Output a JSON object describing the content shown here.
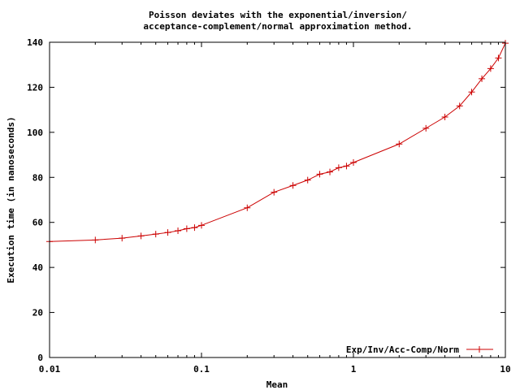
{
  "chart_data": {
    "type": "line",
    "title_lines": [
      "Poisson deviates with the exponential/inversion/",
      "acceptance-complement/normal approximation method."
    ],
    "xlabel": "Mean",
    "ylabel": "Execution time (in nanoseconds)",
    "x_scale": "log",
    "xlim": [
      0.01,
      10
    ],
    "ylim": [
      0,
      140
    ],
    "x_ticks": [
      {
        "value": 0.01,
        "label": "0.01"
      },
      {
        "value": 0.1,
        "label": "0.1"
      },
      {
        "value": 1,
        "label": "1"
      },
      {
        "value": 10,
        "label": "10"
      }
    ],
    "y_ticks": [
      {
        "value": 0,
        "label": "0"
      },
      {
        "value": 20,
        "label": "20"
      },
      {
        "value": 40,
        "label": "40"
      },
      {
        "value": 60,
        "label": "60"
      },
      {
        "value": 80,
        "label": "80"
      },
      {
        "value": 100,
        "label": "100"
      },
      {
        "value": 120,
        "label": "120"
      },
      {
        "value": 140,
        "label": "140"
      }
    ],
    "grid": false,
    "legend_position": "bottom-right",
    "series": [
      {
        "name": "Exp/Inv/Acc-Comp/Norm",
        "color": "#cc0000",
        "points": [
          {
            "x": 0.01,
            "y": 51.5
          },
          {
            "x": 0.02,
            "y": 52.2
          },
          {
            "x": 0.03,
            "y": 53.0
          },
          {
            "x": 0.04,
            "y": 54.0
          },
          {
            "x": 0.05,
            "y": 54.8
          },
          {
            "x": 0.06,
            "y": 55.5
          },
          {
            "x": 0.07,
            "y": 56.3
          },
          {
            "x": 0.08,
            "y": 57.2
          },
          {
            "x": 0.09,
            "y": 57.7
          },
          {
            "x": 0.1,
            "y": 58.7
          },
          {
            "x": 0.2,
            "y": 66.5
          },
          {
            "x": 0.3,
            "y": 73.4
          },
          {
            "x": 0.4,
            "y": 76.4
          },
          {
            "x": 0.5,
            "y": 78.8
          },
          {
            "x": 0.6,
            "y": 81.4
          },
          {
            "x": 0.7,
            "y": 82.4
          },
          {
            "x": 0.8,
            "y": 84.3
          },
          {
            "x": 0.9,
            "y": 85.0
          },
          {
            "x": 1,
            "y": 86.6
          },
          {
            "x": 2,
            "y": 94.8
          },
          {
            "x": 3,
            "y": 101.8
          },
          {
            "x": 4,
            "y": 106.8
          },
          {
            "x": 5,
            "y": 111.7
          },
          {
            "x": 6,
            "y": 117.9
          },
          {
            "x": 7,
            "y": 123.8
          },
          {
            "x": 8,
            "y": 128.3
          },
          {
            "x": 9,
            "y": 133.0
          },
          {
            "x": 10,
            "y": 139.6
          }
        ]
      }
    ]
  }
}
